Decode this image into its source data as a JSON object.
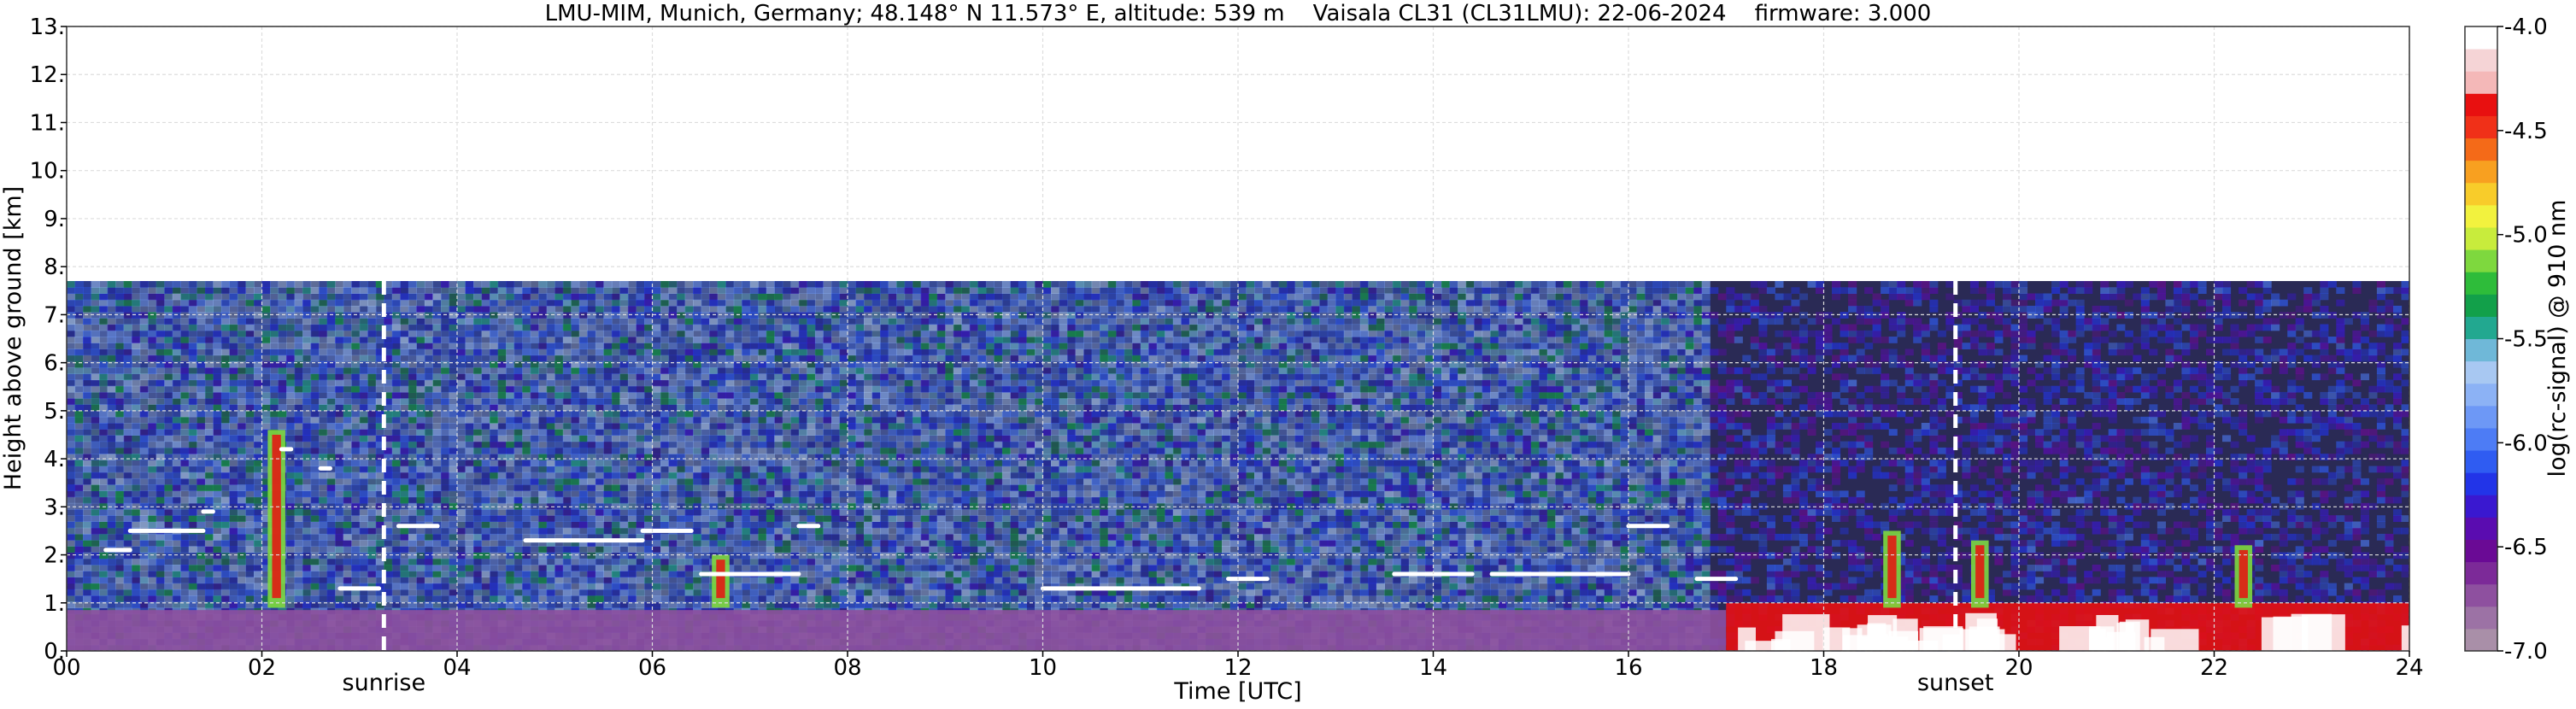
{
  "chart_data": {
    "type": "heatmap",
    "title": "LMU-MIM, Munich, Germany; 48.148° N 11.573° E, altitude: 539 m    Vaisala CL31 (CL31LMU): 22-06-2024    firmware: 3.000",
    "xlabel": "Time [UTC]",
    "ylabel": "Height above ground [km]",
    "xlim": [
      0,
      24
    ],
    "ylim": [
      0,
      13
    ],
    "x_ticks": [
      "00",
      "02",
      "04",
      "06",
      "08",
      "10",
      "12",
      "14",
      "16",
      "18",
      "20",
      "22",
      "24"
    ],
    "y_ticks": [
      "0.",
      "1.",
      "2.",
      "3.",
      "4.",
      "5.",
      "6.",
      "7.",
      "8.",
      "9.",
      "10.",
      "11.",
      "12.",
      "13."
    ],
    "grid": true,
    "data_range_top_km": 7.7,
    "annotations": [
      {
        "label": "sunrise",
        "time_utc": 3.25
      },
      {
        "label": "sunset",
        "time_utc": 19.35
      }
    ],
    "colorbar": {
      "label": "log(rc-signal) @ 910 nm",
      "min": -7.0,
      "max": -4.0,
      "ticks": [
        "-7.0",
        "-6.5",
        "-6.0",
        "-5.5",
        "-5.0",
        "-4.5",
        "-4.0"
      ],
      "colors": [
        "#a98fa8",
        "#9c72a5",
        "#8e509f",
        "#7c2a98",
        "#6a0a95",
        "#5a0cb0",
        "#3a18d0",
        "#2234e8",
        "#2f5cf2",
        "#4d7cf5",
        "#6d98f6",
        "#8cb2f5",
        "#a8c8f2",
        "#6fb8d8",
        "#22a890",
        "#12a04a",
        "#2ebc3a",
        "#7ed83e",
        "#c8ec3c",
        "#f2f23e",
        "#f8cc2a",
        "#f8a020",
        "#f46a18",
        "#f03018",
        "#e81010",
        "#f4b8b8",
        "#f5d4d6",
        "#ffffff"
      ]
    },
    "features": {
      "surface_layer": [
        {
          "t0": 0,
          "t1": 17.0,
          "top_km": 0.85,
          "level": -6.7
        },
        {
          "t0": 17.0,
          "t1": 24,
          "top_km": 1.0,
          "level": -4.4
        }
      ],
      "cloud_segments": [
        {
          "t0": 0.4,
          "t1": 0.65,
          "h": 2.1
        },
        {
          "t0": 0.65,
          "t1": 1.4,
          "h": 2.5
        },
        {
          "t0": 1.4,
          "t1": 1.5,
          "h": 2.9
        },
        {
          "t0": 2.2,
          "t1": 2.3,
          "h": 4.2
        },
        {
          "t0": 2.6,
          "t1": 2.7,
          "h": 3.8
        },
        {
          "t0": 2.8,
          "t1": 3.2,
          "h": 1.3
        },
        {
          "t0": 3.4,
          "t1": 3.8,
          "h": 2.6
        },
        {
          "t0": 4.7,
          "t1": 5.9,
          "h": 2.3
        },
        {
          "t0": 5.9,
          "t1": 6.4,
          "h": 2.5
        },
        {
          "t0": 6.5,
          "t1": 7.5,
          "h": 1.6
        },
        {
          "t0": 7.5,
          "t1": 7.7,
          "h": 2.6
        },
        {
          "t0": 10.0,
          "t1": 11.6,
          "h": 1.3
        },
        {
          "t0": 11.9,
          "t1": 12.3,
          "h": 1.5
        },
        {
          "t0": 13.6,
          "t1": 14.4,
          "h": 1.6
        },
        {
          "t0": 14.6,
          "t1": 16.0,
          "h": 1.6
        },
        {
          "t0": 16.0,
          "t1": 16.4,
          "h": 2.6
        },
        {
          "t0": 16.7,
          "t1": 17.1,
          "h": 1.5
        }
      ],
      "plumes": [
        {
          "t": 2.15,
          "top_km": 4.6
        },
        {
          "t": 6.7,
          "top_km": 2.0
        },
        {
          "t": 18.7,
          "top_km": 2.5
        },
        {
          "t": 19.6,
          "top_km": 2.3
        },
        {
          "t": 22.3,
          "top_km": 2.2
        }
      ]
    }
  }
}
